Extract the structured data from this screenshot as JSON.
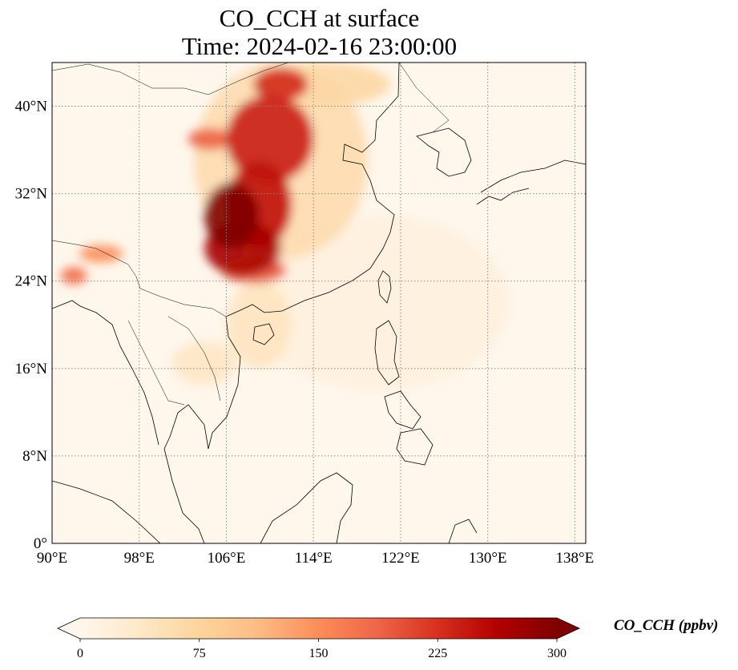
{
  "title_line1": "CO_CCH at surface",
  "title_line2": "Time: 2024-02-16 23:00:00",
  "map": {
    "projection": "PlateCarree",
    "lon_range": [
      90,
      139
    ],
    "lat_range": [
      0,
      44
    ],
    "gridlines": "dotted grey",
    "lon_ticks": [
      {
        "value": 90,
        "label": "90°E"
      },
      {
        "value": 98,
        "label": "98°E"
      },
      {
        "value": 106,
        "label": "106°E"
      },
      {
        "value": 114,
        "label": "114°E"
      },
      {
        "value": 122,
        "label": "122°E"
      },
      {
        "value": 130,
        "label": "130°E"
      },
      {
        "value": 138,
        "label": "138°E"
      }
    ],
    "lat_ticks": [
      {
        "value": 0,
        "label": "0°"
      },
      {
        "value": 8,
        "label": "8°N"
      },
      {
        "value": 16,
        "label": "16°N"
      },
      {
        "value": 24,
        "label": "24°N"
      },
      {
        "value": 32,
        "label": "32°N"
      },
      {
        "value": 40,
        "label": "40°N"
      }
    ],
    "plumes": [
      {
        "lon": 106.5,
        "lat": 30.0,
        "rlon": 2.5,
        "rlat": 3.0,
        "value": 300
      },
      {
        "lon": 107.5,
        "lat": 27.0,
        "rlon": 3.5,
        "rlat": 2.5,
        "value": 270
      },
      {
        "lon": 109.0,
        "lat": 31.0,
        "rlon": 3.0,
        "rlat": 4.0,
        "value": 250
      },
      {
        "lon": 110.0,
        "lat": 37.0,
        "rlon": 4.0,
        "rlat": 4.0,
        "value": 240
      },
      {
        "lon": 111.0,
        "lat": 42.0,
        "rlon": 2.5,
        "rlat": 1.5,
        "value": 230
      },
      {
        "lon": 108.5,
        "lat": 25.0,
        "rlon": 3.0,
        "rlat": 1.2,
        "value": 200
      },
      {
        "lon": 104.5,
        "lat": 37.0,
        "rlon": 2.0,
        "rlat": 1.0,
        "value": 190
      },
      {
        "lon": 92.0,
        "lat": 24.5,
        "rlon": 1.2,
        "rlat": 0.8,
        "value": 180
      },
      {
        "lon": 94.5,
        "lat": 26.5,
        "rlon": 2.0,
        "rlat": 0.8,
        "value": 150
      },
      {
        "lon": 115.0,
        "lat": 42.0,
        "rlon": 6.0,
        "rlat": 2.0,
        "value": 70
      },
      {
        "lon": 109.0,
        "lat": 20.0,
        "rlon": 3.0,
        "rlat": 4.0,
        "value": 45
      },
      {
        "lon": 104.0,
        "lat": 16.5,
        "rlon": 3.0,
        "rlat": 2.0,
        "value": 40
      },
      {
        "lon": 111.0,
        "lat": 35.0,
        "rlon": 8.0,
        "rlat": 9.0,
        "value": 60
      },
      {
        "lon": 120.0,
        "lat": 22.0,
        "rlon": 12.0,
        "rlat": 8.0,
        "value": 15
      }
    ]
  },
  "colorbar": {
    "colormap": "OrRd",
    "min": 0,
    "max": 300,
    "extend": "both",
    "colors": [
      "#fff7ec",
      "#fee8c8",
      "#fdd49e",
      "#fdbb84",
      "#fc8d59",
      "#ef6548",
      "#d7301f",
      "#b30000",
      "#7f0000"
    ],
    "ticks": [
      {
        "value": 0,
        "label": "0"
      },
      {
        "value": 75,
        "label": "75"
      },
      {
        "value": 150,
        "label": "150"
      },
      {
        "value": 225,
        "label": "225"
      },
      {
        "value": 300,
        "label": "300"
      }
    ],
    "label": "CO_CCH (ppbv)"
  }
}
